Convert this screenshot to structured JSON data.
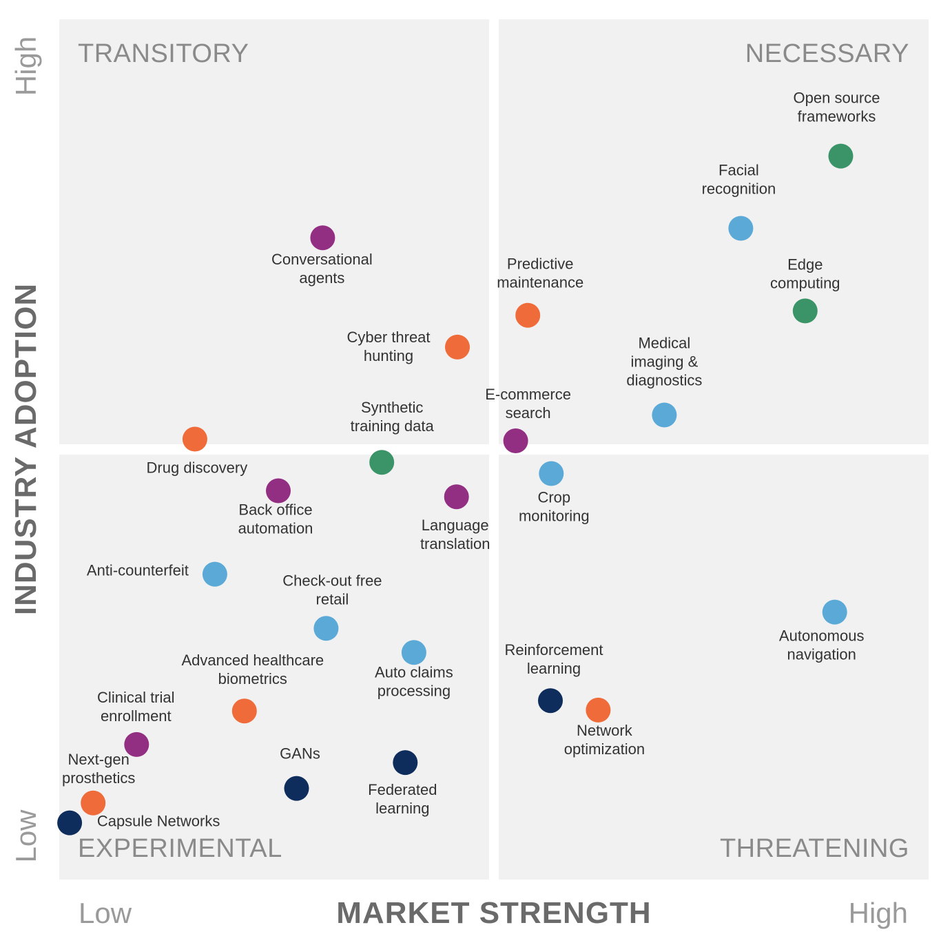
{
  "chart_data": {
    "type": "scatter",
    "title": "",
    "xlabel": "MARKET STRENGTH",
    "ylabel": "INDUSTRY ADOPTION",
    "x_low": "Low",
    "x_high": "High",
    "y_low": "Low",
    "y_high": "High",
    "xlim": [
      0,
      100
    ],
    "ylim": [
      0,
      100
    ],
    "grid": false,
    "quadrants": {
      "top_left": "TRANSITORY",
      "top_right": "NECESSARY",
      "bottom_left": "EXPERIMENTAL",
      "bottom_right": "THREATENING"
    },
    "colors": {
      "purple": "#922f82",
      "orange": "#ef6b3a",
      "blue": "#5ba9d6",
      "green": "#3a9468",
      "navy": "#0f2d5c"
    },
    "points": [
      {
        "label": "Open source frameworks",
        "lines": [
          "Open source",
          "frameworks"
        ],
        "x": 89.9,
        "y": 84.1,
        "color": "green"
      },
      {
        "label": "Facial recognition",
        "lines": [
          "Facial",
          "recognition"
        ],
        "x": 78.4,
        "y": 75.7,
        "color": "blue"
      },
      {
        "label": "Edge computing",
        "lines": [
          "Edge",
          "computing"
        ],
        "x": 85.8,
        "y": 66.1,
        "color": "green"
      },
      {
        "label": "Predictive maintenance",
        "lines": [
          "Predictive",
          "maintenance"
        ],
        "x": 53.9,
        "y": 65.6,
        "color": "orange"
      },
      {
        "label": "Conversational agents",
        "lines": [
          "Conversational",
          "agents"
        ],
        "x": 30.3,
        "y": 74.6,
        "color": "purple"
      },
      {
        "label": "Cyber threat hunting",
        "lines": [
          "Cyber threat",
          "hunting"
        ],
        "x": 45.8,
        "y": 61.9,
        "color": "orange"
      },
      {
        "label": "Medical imaging & diagnostics",
        "lines": [
          "Medical",
          "imaging &",
          "diagnostics"
        ],
        "x": 69.6,
        "y": 54.0,
        "color": "blue"
      },
      {
        "label": "E-commerce search",
        "lines": [
          "E-commerce",
          "search"
        ],
        "x": 52.5,
        "y": 51.0,
        "color": "purple"
      },
      {
        "label": "Synthetic training data",
        "lines": [
          "Synthetic",
          "training data"
        ],
        "x": 37.1,
        "y": 48.5,
        "color": "green"
      },
      {
        "label": "Drug discovery",
        "lines": [
          "Drug discovery"
        ],
        "x": 15.6,
        "y": 51.2,
        "color": "orange"
      },
      {
        "label": "Crop monitoring",
        "lines": [
          "Crop",
          "monitoring"
        ],
        "x": 56.6,
        "y": 47.2,
        "color": "blue"
      },
      {
        "label": "Back office automation",
        "lines": [
          "Back office",
          "automation"
        ],
        "x": 25.2,
        "y": 45.2,
        "color": "purple"
      },
      {
        "label": "Language translation",
        "lines": [
          "Language",
          "translation"
        ],
        "x": 45.7,
        "y": 44.5,
        "color": "purple"
      },
      {
        "label": "Anti-counterfeit",
        "lines": [
          "Anti-counterfeit"
        ],
        "x": 17.9,
        "y": 35.5,
        "color": "blue"
      },
      {
        "label": "Check-out free retail",
        "lines": [
          "Check-out free",
          "retail"
        ],
        "x": 30.7,
        "y": 29.2,
        "color": "blue"
      },
      {
        "label": "Autonomous navigation",
        "lines": [
          "Autonomous",
          "navigation"
        ],
        "x": 89.2,
        "y": 31.1,
        "color": "blue"
      },
      {
        "label": "Auto claims processing",
        "lines": [
          "Auto claims",
          "processing"
        ],
        "x": 40.8,
        "y": 26.4,
        "color": "blue"
      },
      {
        "label": "Advanced healthcare biometrics",
        "lines": [
          "Advanced healthcare",
          "biometrics"
        ],
        "x": 21.3,
        "y": 19.6,
        "color": "orange"
      },
      {
        "label": "Reinforcement learning",
        "lines": [
          "Reinforcement",
          "learning"
        ],
        "x": 56.5,
        "y": 20.8,
        "color": "navy"
      },
      {
        "label": "Network optimization",
        "lines": [
          "Network",
          "optimization"
        ],
        "x": 62.0,
        "y": 19.7,
        "color": "orange"
      },
      {
        "label": "Clinical trial enrollment",
        "lines": [
          "Clinical trial",
          "enrollment"
        ],
        "x": 8.9,
        "y": 15.7,
        "color": "purple"
      },
      {
        "label": "Federated learning",
        "lines": [
          "Federated",
          "learning"
        ],
        "x": 39.8,
        "y": 13.6,
        "color": "navy"
      },
      {
        "label": "GANs",
        "lines": [
          "GANs"
        ],
        "x": 27.3,
        "y": 10.6,
        "color": "navy"
      },
      {
        "label": "Next-gen prosthetics",
        "lines": [
          "Next-gen",
          "prosthetics"
        ],
        "x": 3.9,
        "y": 8.9,
        "color": "orange"
      },
      {
        "label": "Capsule Networks",
        "lines": [
          "Capsule Networks"
        ],
        "x": 1.2,
        "y": 6.6,
        "color": "navy"
      }
    ]
  }
}
